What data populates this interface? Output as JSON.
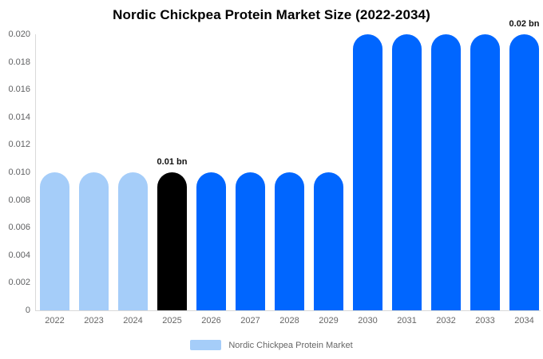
{
  "chart_data": {
    "type": "bar",
    "title": "Nordic Chickpea Protein Market Size (2022-2034)",
    "categories": [
      "2022",
      "2023",
      "2024",
      "2025",
      "2026",
      "2027",
      "2028",
      "2029",
      "2030",
      "2031",
      "2032",
      "2033",
      "2034"
    ],
    "values": [
      0.01,
      0.01,
      0.01,
      0.01,
      0.01,
      0.01,
      0.01,
      0.01,
      0.02,
      0.02,
      0.02,
      0.02,
      0.02
    ],
    "series_name": "Nordic Chickpea Protein Market",
    "xlabel": "",
    "ylabel": "",
    "ylim": [
      0,
      0.02
    ],
    "yticks": [
      "0.020",
      "0.018",
      "0.016",
      "0.014",
      "0.012",
      "0.010",
      "0.008",
      "0.006",
      "0.004",
      "0.002",
      "0"
    ],
    "grid": false,
    "bar_colors": [
      "lightBlue",
      "lightBlue",
      "lightBlue",
      "black",
      "blue",
      "blue",
      "blue",
      "blue",
      "blue",
      "blue",
      "blue",
      "blue",
      "blue"
    ],
    "palette": {
      "lightBlue": "#A5CDF9",
      "blue": "#0066FF",
      "black": "#000000"
    },
    "axis_line_color": "#d9d9d9",
    "annotations": [
      {
        "category": "2025",
        "text": "0.01 bn"
      },
      {
        "category": "2034",
        "text": "0.02 bn"
      }
    ],
    "legend": {
      "position": "bottom",
      "label": "Nordic Chickpea Protein Market",
      "swatch_color": "#A5CDF9"
    }
  }
}
